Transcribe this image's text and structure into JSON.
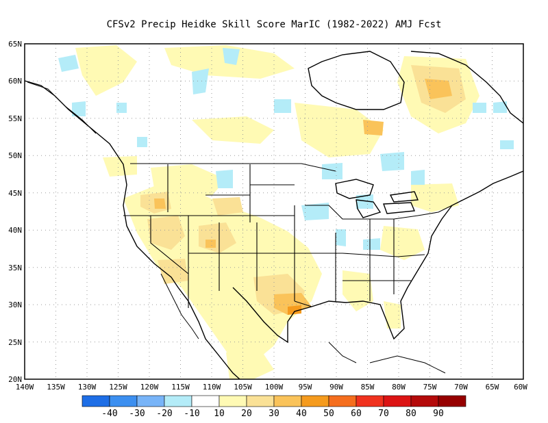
{
  "title": "CFSv2 Precip Heidke Skill Score MarIC (1982-2022) AMJ Fcst",
  "map": {
    "lat_labels": [
      "65N",
      "60N",
      "55N",
      "50N",
      "45N",
      "40N",
      "35N",
      "30N",
      "25N",
      "20N"
    ],
    "lon_labels": [
      "140W",
      "135W",
      "130W",
      "125W",
      "120W",
      "115W",
      "110W",
      "105W",
      "100W",
      "95W",
      "90W",
      "85W",
      "80W",
      "75W",
      "70W",
      "65W",
      "60W"
    ],
    "lat_range": [
      20,
      65
    ],
    "lon_range": [
      -140,
      -60
    ],
    "grid": "dotted"
  },
  "colorbar": {
    "labels": [
      "-40",
      "-30",
      "-20",
      "-10",
      "10",
      "20",
      "30",
      "40",
      "50",
      "60",
      "70",
      "80",
      "90"
    ],
    "colors": [
      "#1e6ee6",
      "#3c8ff0",
      "#78b4f8",
      "#b4ecf8",
      "#ffffff",
      "#fffab4",
      "#fae196",
      "#fac35a",
      "#f59b1e",
      "#f56e1e",
      "#f0321e",
      "#dc1414",
      "#b40a0a",
      "#960000"
    ]
  }
}
